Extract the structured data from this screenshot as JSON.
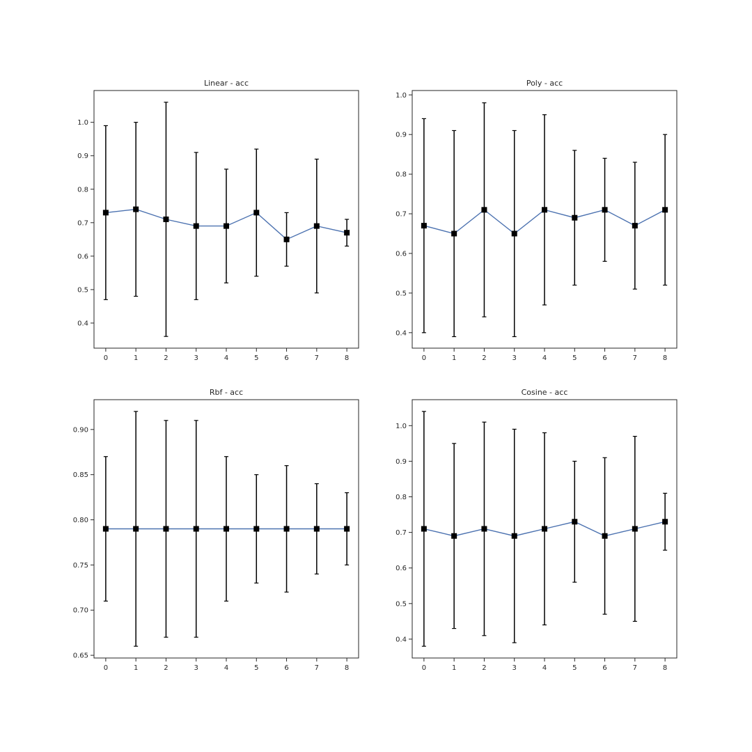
{
  "colors": {
    "line": "#4c72b0",
    "marker": "#000000",
    "errorbar": "#000000",
    "axes": "#262626",
    "background": "#ffffff"
  },
  "chart_data": [
    {
      "type": "line",
      "title": "Linear - acc",
      "xlabel": "",
      "ylabel": "",
      "x": [
        0,
        1,
        2,
        3,
        4,
        5,
        6,
        7,
        8
      ],
      "values": [
        0.73,
        0.74,
        0.71,
        0.69,
        0.69,
        0.73,
        0.65,
        0.69,
        0.67
      ],
      "error_low": [
        0.47,
        0.48,
        0.36,
        0.47,
        0.52,
        0.54,
        0.57,
        0.49,
        0.63
      ],
      "error_high": [
        0.99,
        1.0,
        1.06,
        0.91,
        0.86,
        0.92,
        0.73,
        0.89,
        0.71
      ],
      "xlim": [
        -0.39,
        8.39
      ],
      "ylim": [
        0.325,
        1.095
      ],
      "xticks": [
        0,
        1,
        2,
        3,
        4,
        5,
        6,
        7,
        8
      ],
      "yticks": [
        0.4,
        0.5,
        0.6,
        0.7,
        0.8,
        0.9,
        1.0
      ],
      "yticklabels": [
        "0.4",
        "0.5",
        "0.6",
        "0.7",
        "0.8",
        "0.9",
        "1.0"
      ],
      "grid": false,
      "marker": "square"
    },
    {
      "type": "line",
      "title": "Poly - acc",
      "xlabel": "",
      "ylabel": "",
      "x": [
        0,
        1,
        2,
        3,
        4,
        5,
        6,
        7,
        8
      ],
      "values": [
        0.67,
        0.65,
        0.71,
        0.65,
        0.71,
        0.69,
        0.71,
        0.67,
        0.71
      ],
      "error_low": [
        0.4,
        0.39,
        0.44,
        0.39,
        0.47,
        0.52,
        0.58,
        0.51,
        0.52
      ],
      "error_high": [
        0.94,
        0.91,
        0.98,
        0.91,
        0.95,
        0.86,
        0.84,
        0.83,
        0.9
      ],
      "xlim": [
        -0.39,
        8.39
      ],
      "ylim": [
        0.361,
        1.011
      ],
      "xticks": [
        0,
        1,
        2,
        3,
        4,
        5,
        6,
        7,
        8
      ],
      "yticks": [
        0.4,
        0.5,
        0.6,
        0.7,
        0.8,
        0.9,
        1.0
      ],
      "yticklabels": [
        "0.4",
        "0.5",
        "0.6",
        "0.7",
        "0.8",
        "0.9",
        "1.0"
      ],
      "grid": false,
      "marker": "square"
    },
    {
      "type": "line",
      "title": "Rbf - acc",
      "xlabel": "",
      "ylabel": "",
      "x": [
        0,
        1,
        2,
        3,
        4,
        5,
        6,
        7,
        8
      ],
      "values": [
        0.79,
        0.79,
        0.79,
        0.79,
        0.79,
        0.79,
        0.79,
        0.79,
        0.79
      ],
      "error_low": [
        0.71,
        0.66,
        0.67,
        0.67,
        0.71,
        0.73,
        0.72,
        0.74,
        0.75
      ],
      "error_high": [
        0.87,
        0.92,
        0.91,
        0.91,
        0.87,
        0.85,
        0.86,
        0.84,
        0.83
      ],
      "xlim": [
        -0.39,
        8.39
      ],
      "ylim": [
        0.647,
        0.933
      ],
      "xticks": [
        0,
        1,
        2,
        3,
        4,
        5,
        6,
        7,
        8
      ],
      "yticks": [
        0.65,
        0.7,
        0.75,
        0.8,
        0.85,
        0.9
      ],
      "yticklabels": [
        "0.65",
        "0.70",
        "0.75",
        "0.80",
        "0.85",
        "0.90"
      ],
      "grid": false,
      "marker": "square"
    },
    {
      "type": "line",
      "title": "Cosine - acc",
      "xlabel": "",
      "ylabel": "",
      "x": [
        0,
        1,
        2,
        3,
        4,
        5,
        6,
        7,
        8
      ],
      "values": [
        0.71,
        0.69,
        0.71,
        0.69,
        0.71,
        0.73,
        0.69,
        0.71,
        0.73
      ],
      "error_low": [
        0.38,
        0.43,
        0.41,
        0.39,
        0.44,
        0.56,
        0.47,
        0.45,
        0.65
      ],
      "error_high": [
        1.04,
        0.95,
        1.01,
        0.99,
        0.98,
        0.9,
        0.91,
        0.97,
        0.81
      ],
      "xlim": [
        -0.39,
        8.39
      ],
      "ylim": [
        0.347,
        1.073
      ],
      "xticks": [
        0,
        1,
        2,
        3,
        4,
        5,
        6,
        7,
        8
      ],
      "yticks": [
        0.4,
        0.5,
        0.6,
        0.7,
        0.8,
        0.9,
        1.0
      ],
      "yticklabels": [
        "0.4",
        "0.5",
        "0.6",
        "0.7",
        "0.8",
        "0.9",
        "1.0"
      ],
      "grid": false,
      "marker": "square"
    }
  ]
}
